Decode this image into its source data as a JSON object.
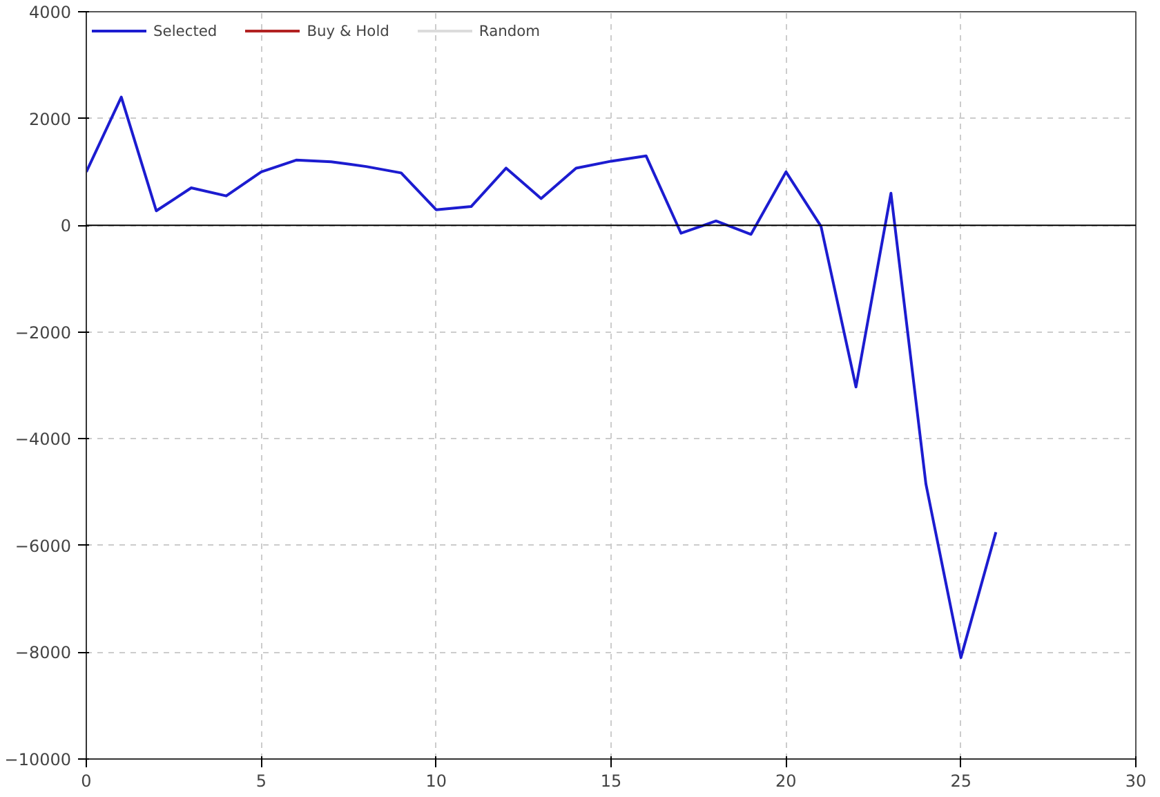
{
  "chart_data": {
    "type": "line",
    "x": [
      0,
      1,
      2,
      3,
      4,
      5,
      6,
      7,
      8,
      9,
      10,
      11,
      12,
      13,
      14,
      15,
      16,
      17,
      18,
      19,
      20,
      21,
      22,
      23,
      24,
      25,
      26
    ],
    "series": [
      {
        "name": "Selected",
        "color": "#1c1cd0",
        "values": [
          1000,
          2400,
          270,
          700,
          550,
          1000,
          1220,
          1190,
          1100,
          980,
          290,
          350,
          1070,
          500,
          1070,
          1200,
          1300,
          -150,
          80,
          -170,
          1000,
          -20,
          -3030,
          600,
          -4850,
          -8100,
          -5750
        ]
      },
      {
        "name": "Buy & Hold",
        "color": "#b22222",
        "values": [
          null,
          null,
          null,
          null,
          null,
          null,
          null,
          null,
          null,
          null,
          null,
          null,
          null,
          null,
          null,
          null,
          null,
          null,
          null,
          null,
          null,
          null,
          null,
          null,
          null,
          null,
          null
        ]
      },
      {
        "name": "Random",
        "color": "#dcdcdc",
        "values": [
          null,
          null,
          null,
          null,
          null,
          null,
          null,
          null,
          null,
          null,
          null,
          null,
          null,
          null,
          null,
          null,
          null,
          null,
          null,
          null,
          null,
          null,
          null,
          null,
          null,
          null,
          null
        ]
      }
    ],
    "xlim": [
      0,
      30
    ],
    "xticks": [
      0,
      5,
      10,
      15,
      20,
      25,
      30
    ],
    "ylim": [
      -10000,
      4000
    ],
    "yticks": [
      -10000,
      -8000,
      -6000,
      -4000,
      -2000,
      0,
      2000,
      4000
    ],
    "ref_lines": [
      {
        "axis": "y",
        "value": 0,
        "color": "#000000"
      }
    ],
    "grid": true,
    "legend": "top left",
    "line_style": "solid",
    "marker": "none"
  }
}
